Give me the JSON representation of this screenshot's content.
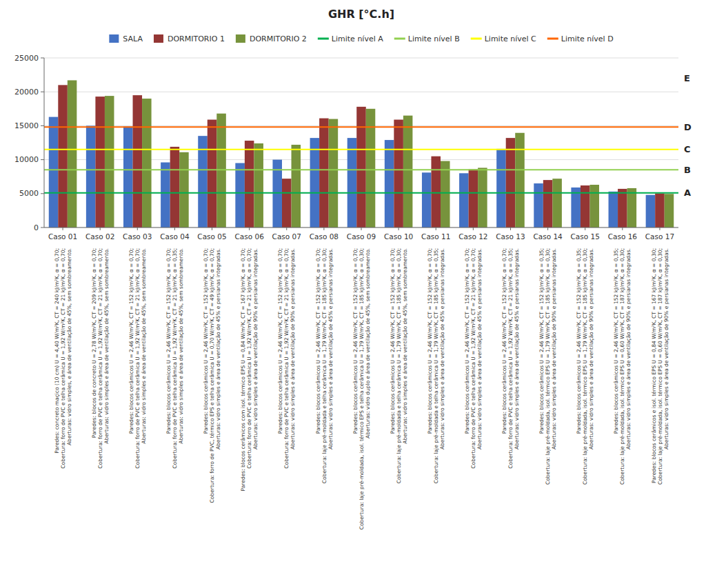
{
  "chart_data": {
    "type": "bar",
    "title": "GHR [°C.h]",
    "categories": [
      "Caso 01",
      "Caso 02",
      "Caso 03",
      "Caso 04",
      "Caso 05",
      "Caso 06",
      "Caso 07",
      "Caso 08",
      "Caso 09",
      "Caso 10",
      "Caso 11",
      "Caso 12",
      "Caso 13",
      "Caso 14",
      "Caso 15",
      "Caso 16",
      "Caso 17"
    ],
    "series": [
      {
        "name": "SALA",
        "color": "#4472C4",
        "values": [
          16300,
          15000,
          14900,
          9600,
          13500,
          9500,
          10000,
          13200,
          13200,
          12900,
          8100,
          8000,
          11600,
          6500,
          5900,
          5300,
          4800
        ]
      },
      {
        "name": "DORMITORIO 1",
        "color": "#943634",
        "values": [
          21000,
          19300,
          19500,
          11900,
          15900,
          12800,
          7200,
          16100,
          17800,
          15900,
          10500,
          8600,
          13200,
          7000,
          6200,
          5700,
          5000
        ]
      },
      {
        "name": "DORMITORIO 2",
        "color": "#77933C",
        "values": [
          21700,
          19400,
          19000,
          11100,
          16800,
          12400,
          12200,
          16000,
          17500,
          16500,
          9800,
          8800,
          13950,
          7200,
          6300,
          5800,
          4950
        ]
      }
    ],
    "reference_lines": [
      {
        "name": "Limite nível A",
        "color": "#00B050",
        "value": 5100
      },
      {
        "name": "Limite nível B",
        "color": "#92D050",
        "value": 8500
      },
      {
        "name": "Limite nível C",
        "color": "#FFFF00",
        "value": 11500
      },
      {
        "name": "Limite nível D",
        "color": "#FF6600",
        "value": 14800
      }
    ],
    "annotations": [
      {
        "text": "A",
        "y": 5100
      },
      {
        "text": "B",
        "y": 8500
      },
      {
        "text": "C",
        "y": 11500
      },
      {
        "text": "D",
        "y": 14800
      },
      {
        "text": "E",
        "y": 22000
      }
    ],
    "category_notes": [
      "Paredes: concreto maçico (10 cm) U = 4,40 W/m²K, CT = 240 kJ/m²K, α = 0,70;\nCobertura: forro de PVC e telha cerâmica U = 1,92 W/m²K, CT = 21 kJ/m²K, α = 0,70;\nAberturas: vidro simples, e área de ventilação de 45%, sem sombreamento.",
      "Paredes: blocos de concreto U = 2,78 W/m²K, CT = 209 kJ/m²K, α = 0,70;\nCobertura: forro de PVC e telha cerâmica U = 1,92 W/m²K, CT = 21 kJ/m²K, α = 0,70;\nAberturas: vidro simples e área de ventilação de 45%, sem sombreamento.",
      "Paredes: blocos cerâmicos U = 2,46 W/m²K, CT = 152 kJ/m²K, α = 0,70;\nCobertura: forro de PVC e telha cerâmica U = 1,92 W/m²K, CT = 21 kJ/m²K, α = 0,70;\nAberturas: vidro simples e área de ventilação de 45%, sem sombreamento.",
      "Paredes: blocos cerâmicos U = 2,46 W/m²K, CT = 152 kJ/m²K, α = 0,70;\nCobertura: forro de PVC e telha cerâmica U = 1,92 W/m²K, CT = 21 kJ/m²K, α = 0,35;\nAberturas: vidro simples e área de ventilação de 45%, sem sombreamento.",
      "Paredes: blocos cerâmicos U = 2,46 W/m²K, CT = 152 kJ/m²K, α = 0,70;\nCobertura: forro de PVC, térmico EPS e telha cerâmica U = 0,70 W/m²K, CT = 49 kJ/m²K, α = 0,70;\nAberturas: vidro simples e área de ventilação de 45% e persianas integradas.",
      "Paredes: blocos cerâmicos com isol. térmico EPS U = 0,84 W/m²K, CT = 167 kJ/m²K, α = 0,70;\nCobertura: forro de PVC e telha cerâmica U = 1,92 W/m²K, CT = 21 kJ/m²K, α = 0,70;\nAberturas: vidro simples e área de ventilação de 90% e persianas integradas.",
      "Paredes: blocos cerâmicos U = 2,46 W/m²K, CT = 152 kJ/m²K, α = 0,70;\nCobertura: forro de PVC e telha cerâmica U = 1,92 W/m²K, CT = 21 kJ/m²K, α = 0,70;\nAberturas: vidro simples e área de ventilação de 90% e persianas integradas.",
      "Paredes: blocos cerâmicos U = 2,46 W/m²K, CT = 152 kJ/m²K, α = 0,70;\nCobertura: laje pré-moldada e telha cerâmica U = 1,79 W/m²K, CT = 185 kJ/m²K, α = 0,30;\nAberturas: vidro simples e área de ventilação de 45% e persianas integradas.",
      "Paredes: blocos cerâmicos U = 2,46 W/m²K, CT = 152 kJ/m²K, α = 0,70;\nCobertura: laje pré-moldada, isol. térmico EPS e telha cerâmica U = 1,79 W/m²K, CT = 185 kJ/m²K, α = 0,30;\nAberturas: vidro duplo e área de ventilação de 45%, sem sombreamento.",
      "Paredes: blocos cerâmicos U = 2,46 W/m²K, CT = 152 kJ/m²K, α = 0,70;\nCobertura: laje pré-moldada e telha cerâmica U = 1,79 W/m²K, CT = 185 kJ/m²K, α = 0,30;\nAberturas: vidro simples e área de ventilação de 45%, sem sombreamento.",
      "Paredes: blocos cerâmicos U = 2,46 W/m²K, CT = 152 kJ/m²K, α = 0,70;\nCobertura: laje pré-moldada e telha cerâmica U = 1,79 W/m²K, CT = 185 kJ/m²K, α = 0,35;\nAberturas: vidro simples e área de ventilação de 45% e persianas integradas.",
      "Paredes: blocos cerâmicos U = 2,46 W/m²K, CT = 152 kJ/m²K, α = 0,70;\nCobertura: forro de PVC e telha cerâmica U = 1,92 W/m²K, CT = 21 kJ/m²K, α = 0,70;\nAberturas: vidro simples e área de ventilação de 45% e persianas integradas.",
      "Paredes: blocos cerâmicos U = 2,46 W/m²K, CT = 152 kJ/m²K, α = 0,70;\nCobertura: forro de PVC e telha cerâmica U = 1,92 W/m²K, CT = 21 kJ/m²K, α = 0,35;\nAberturas: vidro simples e área de ventilação de 45% e persianas integradas.",
      "Paredes: blocos cerâmicos U = 2,46 W/m²K, CT = 152 kJ/m²K, α = 0,35;\nCobertura: laje pré-moldada, isol. térmico EPS U = 1,79 W/m²K, CT = 185 kJ/m²K, α = 0,30;\nAberturas: vidro simples e área de ventilação de 90% e persianas integradas.",
      "Paredes: blocos cerâmicos U = 2,46 W/m²K, CT = 152 kJ/m²K, α = 0,35;\nCobertura: laje pré-moldada, isol. térmico EPS U = 1,79 W/m²K, CT = 185 kJ/m²K, α = 0,30;\nAberturas: vidro simples e área de ventilação de 90% e persianas integradas.",
      "Paredes: blocos cerâmicos U = 2,46 W/m²K, CT = 152 kJ/m²K, α = 0,35;\nCobertura: laje pré-moldada, isol. térmico EPS U = 0,60 W/m²K, CT = 187 kJ/m²K, α = 0,30;\nAberturas: vidro simples e área de ventilação de 90% e persianas integradas.",
      "Paredes: blocos cerâmicos e isol. térmico EPS U = 0,84 W/m²K, CT = 167 kJ/m²K, α = 0,30;\nCobertura: laje pré-moldada, isol. térmico EPS U = 0,60 W/m²K, CT = 187 kJ/m²K, α = 0,30;\nAberturas: vidro simples e área de ventilação de 90% e persianas integradas."
    ],
    "ylim": [
      0,
      25000
    ],
    "yticks": [
      0,
      5000,
      10000,
      15000,
      20000,
      25000
    ],
    "grid": true,
    "legend": "top"
  }
}
